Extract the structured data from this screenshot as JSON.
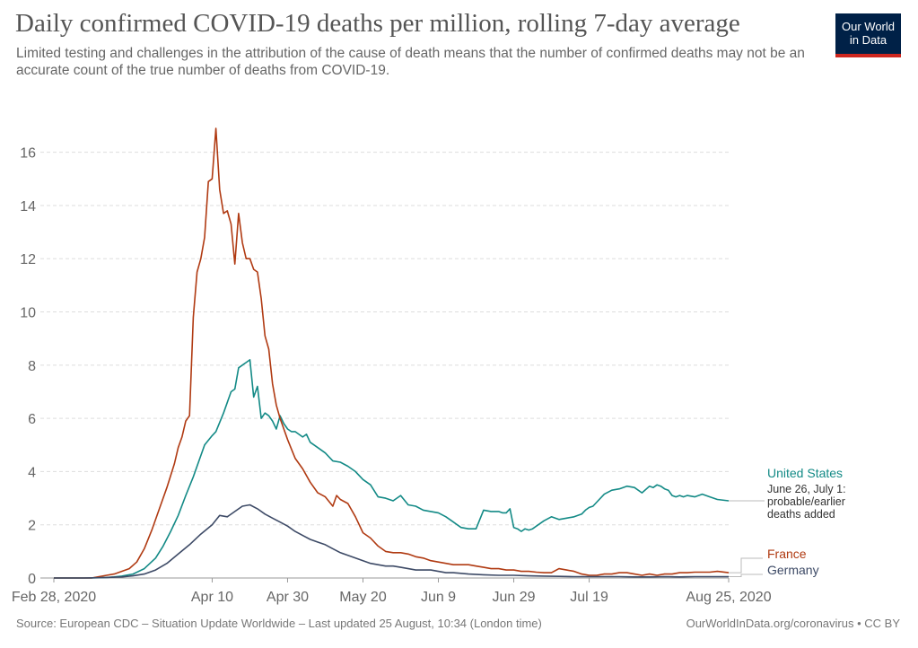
{
  "header": {
    "title": "Daily confirmed COVID-19 deaths per million, rolling 7-day average",
    "subtitle": "Limited testing and challenges in the attribution of the cause of death means that the number of confirmed deaths may not be an accurate count of the true number of deaths from COVID-19.",
    "logo_line1": "Our World",
    "logo_line2": "in Data"
  },
  "footer": {
    "source": "Source: European CDC – Situation Update Worldwide – Last updated 25 August, 10:34 (London time)",
    "credit": "OurWorldInData.org/coronavirus • CC BY"
  },
  "colors": {
    "united_states": "#138a86",
    "france": "#b03a12",
    "germany": "#3d4a66"
  },
  "chart_data": {
    "type": "line",
    "title": "Daily confirmed COVID-19 deaths per million, rolling 7-day average",
    "xlabel": "",
    "ylabel": "",
    "x_unit": "days since Feb 28, 2020",
    "xlim": [
      0,
      179
    ],
    "ylim": [
      0,
      17
    ],
    "yticks": [
      0,
      2,
      4,
      6,
      8,
      10,
      12,
      14,
      16
    ],
    "xticks": [
      {
        "day": 0,
        "label": "Feb 28, 2020"
      },
      {
        "day": 42,
        "label": "Apr 10"
      },
      {
        "day": 62,
        "label": "Apr 30"
      },
      {
        "day": 82,
        "label": "May 20"
      },
      {
        "day": 102,
        "label": "Jun 9"
      },
      {
        "day": 122,
        "label": "Jun 29"
      },
      {
        "day": 142,
        "label": "Jul 19"
      },
      {
        "day": 179,
        "label": "Aug 25, 2020"
      }
    ],
    "annotation": "June 26, July 1: probable/earlier deaths added",
    "series": [
      {
        "name": "United States",
        "key": "united_states",
        "x": [
          0,
          5,
          10,
          14,
          16,
          18,
          21,
          24,
          27,
          29,
          31,
          33,
          35,
          37,
          39,
          40,
          42,
          43,
          45,
          47,
          48,
          49,
          50,
          51,
          52,
          53,
          54,
          55,
          56,
          57,
          58,
          59,
          60,
          61,
          62,
          63,
          64,
          66,
          67,
          68,
          70,
          72,
          74,
          76,
          78,
          80,
          82,
          84,
          86,
          88,
          90,
          92,
          94,
          96,
          98,
          100,
          102,
          104,
          106,
          108,
          110,
          112,
          114,
          116,
          118,
          119,
          120,
          121,
          122,
          123,
          124,
          125,
          126,
          127,
          128,
          130,
          132,
          134,
          136,
          138,
          140,
          141,
          142,
          143,
          144,
          146,
          148,
          150,
          152,
          154,
          156,
          158,
          159,
          160,
          161,
          162,
          163,
          164,
          165,
          166,
          167,
          168,
          170,
          172,
          174,
          176,
          179
        ],
        "values": [
          0,
          0,
          0,
          0.02,
          0.04,
          0.07,
          0.15,
          0.35,
          0.75,
          1.2,
          1.75,
          2.35,
          3.1,
          3.8,
          4.6,
          5.0,
          5.35,
          5.5,
          6.2,
          7.0,
          7.1,
          7.9,
          8.0,
          8.1,
          8.2,
          6.8,
          7.2,
          6.0,
          6.2,
          6.1,
          5.9,
          5.6,
          6.1,
          5.8,
          5.6,
          5.5,
          5.5,
          5.3,
          5.4,
          5.1,
          4.9,
          4.7,
          4.4,
          4.35,
          4.2,
          4.0,
          3.7,
          3.5,
          3.05,
          3.0,
          2.9,
          3.1,
          2.75,
          2.7,
          2.55,
          2.5,
          2.45,
          2.3,
          2.1,
          1.9,
          1.85,
          1.85,
          2.55,
          2.5,
          2.5,
          2.45,
          2.45,
          2.6,
          1.9,
          1.85,
          1.75,
          1.85,
          1.8,
          1.85,
          1.95,
          2.15,
          2.3,
          2.2,
          2.25,
          2.3,
          2.4,
          2.55,
          2.65,
          2.7,
          2.85,
          3.15,
          3.3,
          3.35,
          3.45,
          3.4,
          3.2,
          3.45,
          3.4,
          3.5,
          3.45,
          3.35,
          3.3,
          3.1,
          3.05,
          3.1,
          3.05,
          3.1,
          3.05,
          3.15,
          3.05,
          2.95,
          2.9
        ]
      },
      {
        "name": "France",
        "key": "france",
        "x": [
          0,
          5,
          8,
          10,
          12,
          14,
          16,
          18,
          20,
          22,
          24,
          26,
          28,
          30,
          32,
          33,
          34,
          35,
          36,
          37,
          38,
          39,
          40,
          41,
          42,
          43,
          44,
          45,
          46,
          47,
          48,
          49,
          50,
          51,
          52,
          53,
          54,
          55,
          56,
          57,
          58,
          59,
          60,
          62,
          64,
          66,
          68,
          70,
          72,
          74,
          75,
          76,
          78,
          80,
          82,
          84,
          86,
          88,
          90,
          92,
          94,
          96,
          98,
          100,
          102,
          104,
          106,
          108,
          110,
          112,
          114,
          116,
          118,
          120,
          122,
          124,
          126,
          128,
          130,
          132,
          134,
          136,
          138,
          140,
          142,
          144,
          146,
          148,
          150,
          152,
          154,
          156,
          158,
          160,
          162,
          164,
          166,
          168,
          170,
          172,
          174,
          176,
          179
        ],
        "values": [
          0,
          0,
          0,
          0,
          0.05,
          0.1,
          0.15,
          0.25,
          0.35,
          0.6,
          1.1,
          1.8,
          2.6,
          3.4,
          4.3,
          4.9,
          5.3,
          5.9,
          6.1,
          9.8,
          11.5,
          12.0,
          12.8,
          14.9,
          15.0,
          16.9,
          14.6,
          13.7,
          13.8,
          13.3,
          11.8,
          13.7,
          12.6,
          12.0,
          12.0,
          11.6,
          11.5,
          10.5,
          9.1,
          8.6,
          7.3,
          6.5,
          6.0,
          5.2,
          4.5,
          4.1,
          3.6,
          3.2,
          3.05,
          2.7,
          3.1,
          2.95,
          2.8,
          2.3,
          1.7,
          1.5,
          1.2,
          1.0,
          0.95,
          0.95,
          0.9,
          0.8,
          0.75,
          0.65,
          0.6,
          0.55,
          0.5,
          0.5,
          0.5,
          0.45,
          0.4,
          0.35,
          0.35,
          0.3,
          0.3,
          0.25,
          0.25,
          0.22,
          0.2,
          0.2,
          0.35,
          0.3,
          0.25,
          0.15,
          0.1,
          0.1,
          0.15,
          0.15,
          0.2,
          0.2,
          0.15,
          0.1,
          0.15,
          0.1,
          0.15,
          0.15,
          0.2,
          0.2,
          0.22,
          0.22,
          0.22,
          0.25,
          0.2
        ]
      },
      {
        "name": "Germany",
        "key": "germany",
        "x": [
          0,
          8,
          14,
          18,
          21,
          24,
          27,
          30,
          33,
          36,
          39,
          42,
          44,
          46,
          48,
          50,
          52,
          54,
          56,
          58,
          60,
          62,
          64,
          66,
          68,
          70,
          72,
          74,
          76,
          78,
          80,
          82,
          84,
          86,
          88,
          90,
          92,
          94,
          96,
          98,
          100,
          102,
          104,
          106,
          110,
          114,
          118,
          122,
          126,
          130,
          134,
          138,
          142,
          146,
          150,
          154,
          158,
          162,
          166,
          170,
          174,
          179
        ],
        "values": [
          0,
          0,
          0.02,
          0.04,
          0.08,
          0.15,
          0.3,
          0.55,
          0.9,
          1.25,
          1.65,
          2.0,
          2.35,
          2.3,
          2.5,
          2.7,
          2.75,
          2.6,
          2.4,
          2.25,
          2.1,
          1.95,
          1.75,
          1.6,
          1.45,
          1.35,
          1.25,
          1.1,
          0.95,
          0.85,
          0.75,
          0.65,
          0.55,
          0.5,
          0.45,
          0.45,
          0.4,
          0.35,
          0.3,
          0.3,
          0.3,
          0.25,
          0.2,
          0.2,
          0.15,
          0.12,
          0.1,
          0.1,
          0.08,
          0.07,
          0.06,
          0.05,
          0.05,
          0.05,
          0.05,
          0.04,
          0.04,
          0.05,
          0.04,
          0.05,
          0.05,
          0.05
        ]
      }
    ]
  }
}
